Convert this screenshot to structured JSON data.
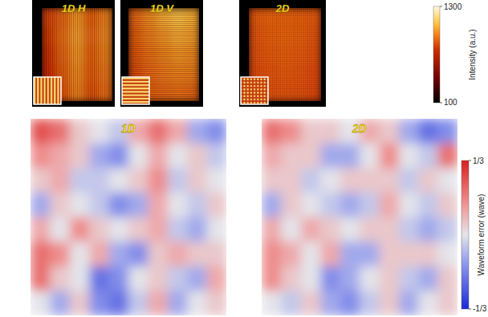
{
  "chart_data": [
    {
      "type": "heatmap",
      "panels": [
        {
          "title": "1D H",
          "cells": [
            [
              820,
              900,
              1000,
              880,
              960
            ],
            [
              800,
              920,
              1020,
              900,
              980
            ],
            [
              780,
              900,
              1000,
              880,
              960
            ],
            [
              760,
              880,
              980,
              870,
              940
            ],
            [
              740,
              860,
              960,
              850,
              920
            ]
          ]
        },
        {
          "title": "1D V",
          "cells": [
            [
              900,
              980,
              1050,
              1100,
              1060
            ],
            [
              880,
              950,
              1000,
              1050,
              1020
            ],
            [
              860,
              920,
              960,
              1000,
              980
            ],
            [
              840,
              900,
              940,
              960,
              950
            ],
            [
              820,
              880,
              900,
              920,
              900
            ]
          ]
        },
        {
          "title": "2D",
          "cells": [
            [
              860,
              880,
              880,
              870,
              860
            ],
            [
              850,
              870,
              880,
              870,
              850
            ],
            [
              840,
              860,
              870,
              860,
              840
            ],
            [
              830,
              850,
              860,
              850,
              830
            ],
            [
              820,
              840,
              850,
              840,
              820
            ]
          ]
        }
      ],
      "colorbar": {
        "label": "Intensity (a.u.)",
        "range": [
          100,
          1300
        ],
        "ticks": [
          100,
          1300
        ]
      }
    },
    {
      "type": "heatmap",
      "panels": [
        {
          "title": "1D",
          "cells": [
            [
              0.25,
              0.2,
              0.05,
              0,
              -0.05,
              0.1,
              0.2,
              0.1,
              -0.1,
              -0.15
            ],
            [
              0.15,
              0.1,
              0.05,
              -0.1,
              -0.15,
              0,
              0.1,
              0,
              0.05,
              -0.05
            ],
            [
              0.05,
              0.1,
              -0.05,
              -0.05,
              0,
              0.05,
              0.15,
              -0.05,
              0.05,
              0
            ],
            [
              -0.1,
              0.05,
              0,
              -0.05,
              -0.15,
              -0.1,
              0.1,
              0,
              -0.05,
              0.05
            ],
            [
              0.1,
              0,
              0.15,
              0.05,
              0,
              0.05,
              0.1,
              -0.05,
              -0.1,
              0
            ],
            [
              0.2,
              0.15,
              0,
              0.1,
              -0.1,
              -0.15,
              0.05,
              0.1,
              0.05,
              0.05
            ],
            [
              0.2,
              0.05,
              0,
              -0.2,
              -0.15,
              0,
              0.05,
              -0.05,
              -0.1,
              0.1
            ],
            [
              0,
              -0.1,
              0.05,
              -0.15,
              -0.2,
              -0.05,
              0.1,
              -0.1,
              0,
              0.05
            ]
          ]
        },
        {
          "title": "2D",
          "cells": [
            [
              0.2,
              0.15,
              0.05,
              0.05,
              0,
              0.1,
              0.05,
              -0.1,
              -0.2,
              -0.15
            ],
            [
              0.1,
              0.05,
              0.05,
              -0.1,
              -0.1,
              0,
              0.15,
              0,
              -0.05,
              0.2
            ],
            [
              0.05,
              0.05,
              -0.05,
              0,
              0.05,
              0.05,
              0.05,
              -0.05,
              0.05,
              0
            ],
            [
              -0.1,
              0.05,
              0,
              -0.05,
              -0.1,
              -0.05,
              0.1,
              0,
              -0.05,
              0.05
            ],
            [
              0.1,
              0,
              0.1,
              0.05,
              0,
              0.05,
              0.05,
              -0.05,
              -0.1,
              -0.05
            ],
            [
              0.15,
              0.1,
              0,
              0.1,
              -0.1,
              -0.1,
              0.05,
              0.05,
              0.05,
              0
            ],
            [
              0.15,
              0.05,
              0,
              -0.15,
              -0.1,
              0,
              0.05,
              -0.05,
              -0.1,
              0.05
            ],
            [
              0,
              -0.05,
              0.05,
              -0.1,
              -0.15,
              -0.05,
              0.05,
              -0.1,
              0,
              0.05
            ]
          ]
        }
      ],
      "colorbar": {
        "label": "Waveform error (wave)",
        "range": [
          -0.3333,
          0.3333
        ],
        "ticks": [
          {
            "value": 0.3333,
            "label": "1/3"
          },
          {
            "value": -0.3333,
            "label": "-1/3"
          }
        ]
      }
    }
  ]
}
